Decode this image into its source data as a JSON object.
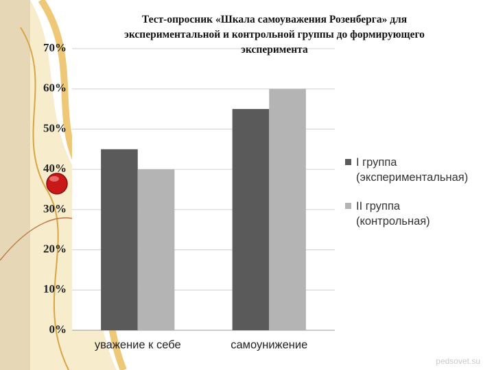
{
  "chart_data": {
    "type": "bar",
    "title": "Тест-опросник «Шкала самоуважения Розенберга» для экспериментальной и контрольной группы до формирующего эксперимента",
    "categories": [
      "уважение к себе",
      "самоунижение"
    ],
    "series": [
      {
        "name": "I группа (экспериментальная)",
        "color": "#5a5a5a",
        "values": [
          45,
          55
        ]
      },
      {
        "name": "II группа (контрольная)",
        "color": "#b4b4b4",
        "values": [
          40,
          60
        ]
      }
    ],
    "ylim": [
      0,
      70
    ],
    "yticks": [
      {
        "value": 0,
        "label": "0%"
      },
      {
        "value": 10,
        "label": "10%"
      },
      {
        "value": 20,
        "label": "20%"
      },
      {
        "value": 30,
        "label": "30%"
      },
      {
        "value": 40,
        "label": "40%"
      },
      {
        "value": 50,
        "label": "50%"
      },
      {
        "value": 60,
        "label": "60%"
      },
      {
        "value": 70,
        "label": "70%"
      }
    ],
    "grid": true
  },
  "watermark": "pedsovet.su"
}
